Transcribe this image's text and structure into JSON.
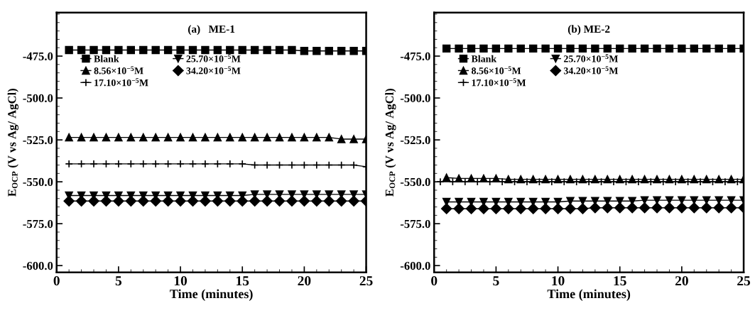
{
  "chart_data": [
    {
      "type": "line",
      "title": "(a)   ME-1",
      "xlabel": "Time (minutes)",
      "ylabel": "E$_{OCP}$ (V vs Ag/ AgCl)",
      "x": [
        1,
        2,
        3,
        4,
        5,
        6,
        7,
        8,
        9,
        10,
        11,
        12,
        13,
        14,
        15,
        16,
        17,
        18,
        19,
        20,
        21,
        22,
        23,
        24,
        25
      ],
      "series": [
        {
          "name": "Blank",
          "color": "#000000",
          "marker": "square",
          "values": [
            -471.4,
            -471.4,
            -471.4,
            -471.4,
            -471.4,
            -471.4,
            -471.4,
            -471.4,
            -471.4,
            -471.4,
            -471.4,
            -471.4,
            -471.4,
            -471.4,
            -471.4,
            -471.4,
            -471.4,
            -471.4,
            -471.4,
            -471.9,
            -471.9,
            -471.9,
            -471.9,
            -471.9,
            -471.9
          ]
        },
        {
          "name": "8.56×10$^{−5}$M",
          "color": "#000000",
          "marker": "triangle",
          "values": [
            -523.5,
            -523.5,
            -523.5,
            -523.5,
            -523.5,
            -523.5,
            -523.5,
            -523.5,
            -523.5,
            -523.5,
            -523.5,
            -523.5,
            -523.5,
            -523.5,
            -523.5,
            -523.5,
            -523.5,
            -523.5,
            -523.5,
            -523.5,
            -523.5,
            -523.5,
            -524.5,
            -524.5,
            -524.5
          ]
        },
        {
          "name": "17.10×10$^{−5}$M",
          "color": "#000000",
          "marker": "cross",
          "values": [
            -539.3,
            -539.3,
            -539.3,
            -539.3,
            -539.3,
            -539.3,
            -539.3,
            -539.3,
            -539.3,
            -539.3,
            -539.3,
            -539.3,
            -539.3,
            -539.3,
            -539.3,
            -540,
            -540,
            -540,
            -540,
            -540,
            -540,
            -540,
            -540,
            -540,
            -541
          ]
        },
        {
          "name": "25.70×10$^{−5}$M",
          "color": "#000000",
          "marker": "triangle_down",
          "values": [
            -558.2,
            -558.2,
            -558.2,
            -558.2,
            -558.2,
            -558.2,
            -558.2,
            -558.2,
            -558.2,
            -558.2,
            -558.2,
            -558.2,
            -558.2,
            -558.2,
            -558.2,
            -557.5,
            -557.5,
            -557.5,
            -557.5,
            -557.5,
            -557.5,
            -557.5,
            -557.5,
            -557.5,
            -557.5
          ]
        },
        {
          "name": "34.20×10$^{−5}$M",
          "color": "#000000",
          "marker": "diamond",
          "values": [
            -561.5,
            -561.5,
            -561.5,
            -561.5,
            -561.5,
            -561.5,
            -561.5,
            -561.5,
            -561.5,
            -561.5,
            -561.5,
            -561.5,
            -561.5,
            -561.5,
            -561.5,
            -561.5,
            -561.5,
            -561.5,
            -561.5,
            -561.5,
            -561.5,
            -561.5,
            -561.5,
            -561.5,
            -561.5
          ]
        }
      ],
      "xlim": [
        0,
        25
      ],
      "xticks": [
        0,
        5,
        10,
        15,
        20,
        25
      ],
      "ylim": [
        -604,
        -449
      ],
      "yticks": [
        {
          "value": -475,
          "label": "-475.0"
        },
        {
          "value": -500,
          "label": "-500.0"
        },
        {
          "value": -525,
          "label": "-525.0"
        },
        {
          "value": -550,
          "label": "-550.0"
        },
        {
          "value": -575,
          "label": "-575.0"
        },
        {
          "value": -600,
          "label": "-600.0"
        }
      ],
      "legend": "upper left",
      "grid": false
    },
    {
      "type": "line",
      "title": "(b) ME-2",
      "xlabel": "Time (minutes)",
      "ylabel": "E$_{OCP}$ (V vs Ag/ AgCl)",
      "x": [
        1,
        2,
        3,
        4,
        5,
        6,
        7,
        8,
        9,
        10,
        11,
        12,
        13,
        14,
        15,
        16,
        17,
        18,
        19,
        20,
        21,
        22,
        23,
        24,
        25
      ],
      "series": [
        {
          "name": "Blank",
          "color": "#000000",
          "marker": "square",
          "values": [
            -470.5,
            -470.5,
            -470.5,
            -470.5,
            -470.5,
            -470.5,
            -470.5,
            -470.5,
            -470.5,
            -470.5,
            -470.5,
            -470.5,
            -470.5,
            -470.5,
            -470.5,
            -470.5,
            -470.5,
            -470.5,
            -470.5,
            -470.5,
            -470.5,
            -470.5,
            -470.5,
            -470.5,
            -470.5
          ]
        },
        {
          "name": "8.56×10$^{−5}$M",
          "color": "#000000",
          "marker": "triangle",
          "values": [
            -547.5,
            -548,
            -548,
            -548,
            -548,
            -548.5,
            -548.5,
            -548.5,
            -548.5,
            -548.5,
            -548.5,
            -548.5,
            -548.5,
            -548.5,
            -548.5,
            -548.5,
            -548.5,
            -548.5,
            -548.5,
            -548.5,
            -548.5,
            -548.5,
            -548.5,
            -548.5,
            -548.5
          ]
        },
        {
          "name": "17.10×10$^{−5}$M",
          "color": "#000000",
          "marker": "cross",
          "x": [
            0.5,
            1.5,
            2.5,
            3.5,
            4.5,
            5.5,
            6.5,
            7.5,
            8.5,
            9.5,
            10.5,
            11.5,
            12.5,
            13.5,
            14.5,
            15.5,
            16.5,
            17.5,
            18.5,
            19.5,
            20.5,
            21.5,
            22.5,
            23.5,
            24.5
          ],
          "values": [
            -550,
            -550,
            -550,
            -550,
            -550,
            -550,
            -550,
            -550,
            -550,
            -550,
            -550,
            -550,
            -550,
            -550,
            -550,
            -550,
            -550,
            -550,
            -550,
            -550,
            -550,
            -550,
            -550,
            -550,
            -550
          ]
        },
        {
          "name": "25.70×10$^{−5}$M",
          "color": "#000000",
          "marker": "triangle_down",
          "values": [
            -562,
            -562,
            -562,
            -562,
            -562,
            -562,
            -562,
            -562,
            -562,
            -562,
            -561.5,
            -561.5,
            -561.5,
            -561.5,
            -561.5,
            -561.5,
            -561,
            -561,
            -561,
            -561,
            -561,
            -561,
            -561,
            -561,
            -561
          ]
        },
        {
          "name": "34.20×10$^{−5}$M",
          "color": "#000000",
          "marker": "diamond",
          "values": [
            -566,
            -566,
            -566,
            -566,
            -566,
            -566,
            -566,
            -566,
            -566,
            -566,
            -566,
            -566,
            -565.5,
            -565.5,
            -565.5,
            -565.5,
            -565.5,
            -565.5,
            -565.5,
            -565.5,
            -565.5,
            -565.5,
            -565.5,
            -565.5,
            -565.5
          ]
        }
      ],
      "xlim": [
        0,
        25
      ],
      "xticks": [
        0,
        5,
        10,
        15,
        20,
        25
      ],
      "ylim": [
        -604,
        -449
      ],
      "yticks": [
        {
          "value": -475,
          "label": "-475.0"
        },
        {
          "value": -500,
          "label": "-500.0"
        },
        {
          "value": -525,
          "label": "-525.0"
        },
        {
          "value": -550,
          "label": "-550.0"
        },
        {
          "value": -575,
          "label": "-575.0"
        },
        {
          "value": -600,
          "label": "-600.0"
        }
      ],
      "legend": "upper left",
      "grid": false
    }
  ]
}
